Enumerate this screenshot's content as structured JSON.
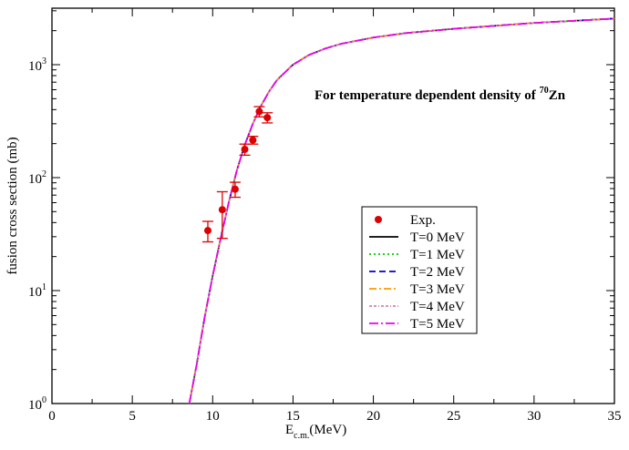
{
  "chart_data": {
    "type": "line",
    "annotation": "For temperature dependent density of",
    "annotation_sup": "70",
    "annotation_tail": "Zn",
    "xlabel": "E",
    "xlabel_sub": "c.m.",
    "xlabel_tail": "(MeV)",
    "ylabel": "fusion cross section (mb)",
    "xlim": [
      0,
      35
    ],
    "ylim": [
      1,
      3162
    ],
    "yscale": "log",
    "x_ticks": [
      0,
      5,
      10,
      15,
      20,
      25,
      30,
      35
    ],
    "x_tick_labels": [
      "0",
      "5",
      "10",
      "15",
      "20",
      "25",
      "30",
      "35"
    ],
    "y_ticks": [
      1,
      10,
      100,
      1000
    ],
    "y_tick_base": "10",
    "y_tick_exponents": [
      "0",
      "1",
      "2",
      "3"
    ],
    "legend_position": "center-right",
    "experimental": {
      "name": "Exp.",
      "color": "#dd0000",
      "points": [
        {
          "x": 9.7,
          "y": 34,
          "ylo": 27,
          "yhi": 41
        },
        {
          "x": 10.6,
          "y": 52,
          "ylo": 29,
          "yhi": 75
        },
        {
          "x": 11.4,
          "y": 79,
          "ylo": 67,
          "yhi": 91
        },
        {
          "x": 12.0,
          "y": 178,
          "ylo": 158,
          "yhi": 198
        },
        {
          "x": 12.5,
          "y": 215,
          "ylo": 198,
          "yhi": 232
        },
        {
          "x": 12.9,
          "y": 385,
          "ylo": 345,
          "yhi": 425
        },
        {
          "x": 13.4,
          "y": 340,
          "ylo": 305,
          "yhi": 375
        }
      ]
    },
    "curve_x": [
      8.55,
      9.0,
      9.5,
      10.0,
      10.5,
      11.0,
      11.5,
      12.0,
      12.5,
      13.0,
      13.5,
      14.0,
      15.0,
      16.0,
      17.0,
      18.0,
      20.0,
      22.0,
      25.0,
      30.0,
      35.0
    ],
    "series": [
      {
        "name": "T=0 MeV",
        "color": "#000000",
        "dash": "",
        "values": [
          1.0,
          2.2,
          5.8,
          13.5,
          29,
          60,
          115,
          195,
          300,
          430,
          575,
          730,
          1000,
          1220,
          1390,
          1530,
          1740,
          1900,
          2080,
          2340,
          2560
        ]
      },
      {
        "name": "T=1 MeV",
        "color": "#00cc00",
        "dash": "2,3",
        "values": [
          1.0,
          2.2,
          5.8,
          13.5,
          29,
          60,
          115,
          195,
          300,
          430,
          575,
          730,
          1000,
          1220,
          1390,
          1530,
          1740,
          1900,
          2080,
          2340,
          2560
        ]
      },
      {
        "name": "T=2 MeV",
        "color": "#0000cc",
        "dash": "7,4",
        "values": [
          1.0,
          2.2,
          5.8,
          13.5,
          29,
          60,
          115,
          195,
          300,
          430,
          575,
          730,
          1000,
          1220,
          1390,
          1530,
          1740,
          1900,
          2080,
          2340,
          2560
        ]
      },
      {
        "name": "T=3 MeV",
        "color": "#ff9900",
        "dash": "8,3,2,3",
        "values": [
          1.0,
          2.2,
          5.8,
          13.5,
          29,
          60,
          115,
          195,
          300,
          430,
          575,
          730,
          1000,
          1220,
          1390,
          1530,
          1740,
          1900,
          2080,
          2340,
          2560
        ]
      },
      {
        "name": "T=4 MeV",
        "color": "#cc88aa",
        "dash": "3,2,3,2,1,2",
        "values": [
          1.0,
          2.2,
          5.8,
          13.5,
          29,
          60,
          115,
          195,
          300,
          430,
          575,
          730,
          1000,
          1220,
          1390,
          1530,
          1740,
          1900,
          2080,
          2340,
          2560
        ]
      },
      {
        "name": "T=5 MeV",
        "color": "#ee00ee",
        "dash": "10,3,2,3",
        "values": [
          1.0,
          2.2,
          5.8,
          13.5,
          29,
          60,
          115,
          195,
          300,
          430,
          575,
          730,
          1000,
          1220,
          1390,
          1530,
          1740,
          1900,
          2080,
          2340,
          2560
        ]
      }
    ]
  }
}
